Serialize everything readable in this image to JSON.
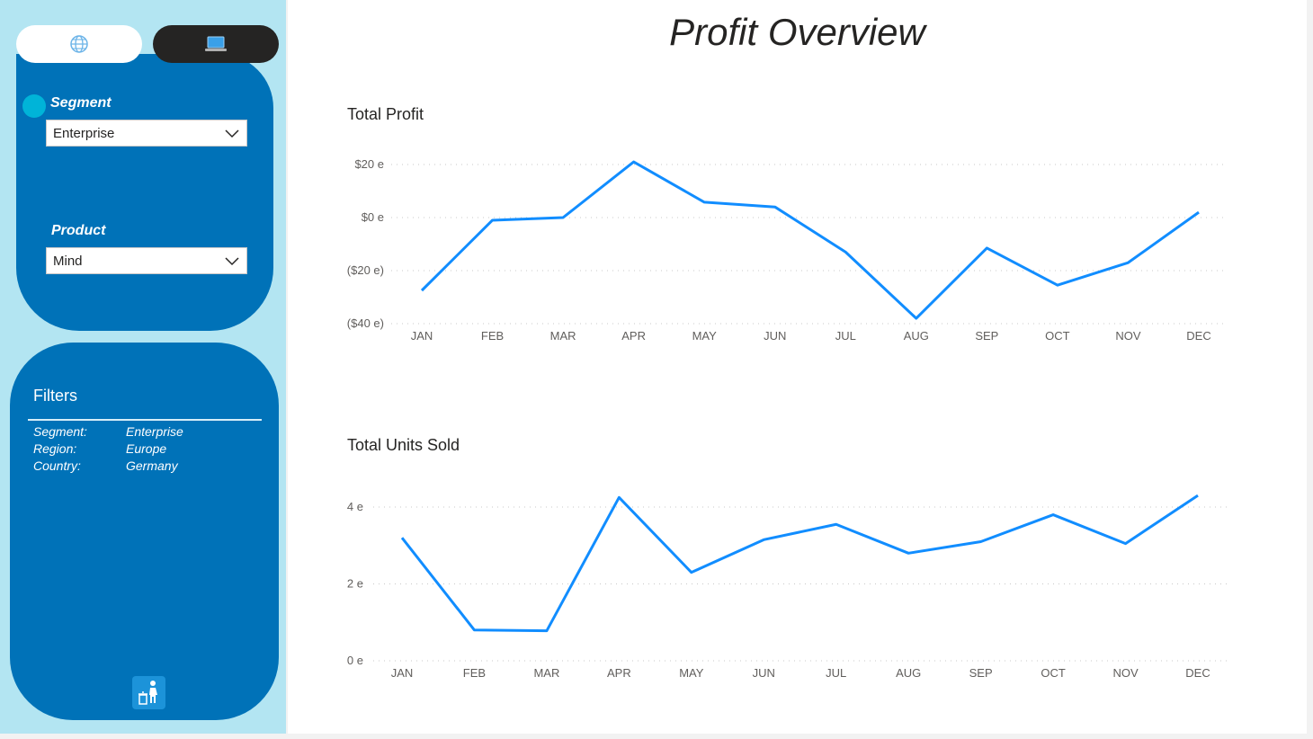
{
  "page_title": "Profit Overview",
  "sidebar": {
    "nav": [
      {
        "icon": "globe-icon"
      },
      {
        "icon": "laptop-icon"
      }
    ],
    "segment_slicer": {
      "title": "Segment",
      "value": "Enterprise"
    },
    "product_slicer": {
      "title": "Product",
      "value": "Mind"
    },
    "filters": {
      "title": "Filters",
      "rows": [
        {
          "key": "Segment:",
          "value": "Enterprise"
        },
        {
          "key": "Region:",
          "value": "Europe"
        },
        {
          "key": "Country:",
          "value": "Germany"
        }
      ]
    },
    "reset_icon": "reset-filters-icon"
  },
  "colors": {
    "line": "#118dff",
    "sidebar_bg": "#b3e5f2",
    "card_bg": "#0072b8",
    "accent_dot": "#00b4d8"
  },
  "chart_data": [
    {
      "type": "line",
      "title": "Total Profit",
      "categories": [
        "JAN",
        "FEB",
        "MAR",
        "APR",
        "MAY",
        "JUN",
        "JUL",
        "AUG",
        "SEP",
        "OCT",
        "NOV",
        "DEC"
      ],
      "series": [
        {
          "values": [
            -27.5,
            -1,
            0,
            21,
            5.8,
            4,
            -13,
            -38,
            -11.5,
            -25.5,
            -17,
            2
          ]
        }
      ],
      "yticks": [
        20,
        0,
        -20,
        -40
      ],
      "ytick_labels": [
        "$20 e",
        "$0 e",
        "($20 e)",
        "($40 e)"
      ],
      "ylim": [
        -40,
        20
      ],
      "grid": true
    },
    {
      "type": "line",
      "title": "Total Units Sold",
      "categories": [
        "JAN",
        "FEB",
        "MAR",
        "APR",
        "MAY",
        "JUN",
        "JUL",
        "AUG",
        "SEP",
        "OCT",
        "NOV",
        "DEC"
      ],
      "series": [
        {
          "values": [
            3.2,
            0.8,
            0.78,
            4.25,
            2.3,
            3.15,
            3.55,
            2.8,
            3.1,
            3.8,
            3.05,
            4.3
          ]
        }
      ],
      "yticks": [
        4,
        2,
        0
      ],
      "ytick_labels": [
        "4 e",
        "2 e",
        "0 e"
      ],
      "ylim": [
        0,
        4
      ],
      "grid": true
    }
  ]
}
